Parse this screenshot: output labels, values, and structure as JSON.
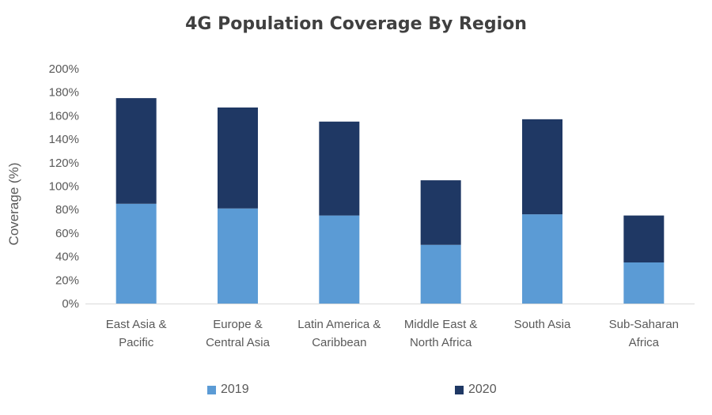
{
  "chart_data": {
    "type": "bar",
    "stacked": true,
    "title": "4G Population Coverage By Region",
    "xlabel": "",
    "ylabel": "Coverage (%)",
    "ylim": [
      0,
      200
    ],
    "yticks": [
      "0%",
      "20%",
      "40%",
      "60%",
      "80%",
      "100%",
      "120%",
      "140%",
      "160%",
      "180%",
      "200%"
    ],
    "categories": [
      [
        "East Asia &",
        "Pacific"
      ],
      [
        "Europe &",
        "Central Asia"
      ],
      [
        "Latin America &",
        "Caribbean"
      ],
      [
        "Middle East &",
        "North Africa"
      ],
      [
        "South Asia"
      ],
      [
        "Sub-Saharan",
        "Africa"
      ]
    ],
    "series": [
      {
        "name": "2019",
        "color": "#5b9bd5",
        "values": [
          85,
          81,
          75,
          50,
          76,
          35
        ]
      },
      {
        "name": "2020",
        "color": "#1f3864",
        "values": [
          90,
          86,
          80,
          55,
          81,
          40
        ]
      }
    ],
    "legend_position": "bottom",
    "grid": false
  }
}
